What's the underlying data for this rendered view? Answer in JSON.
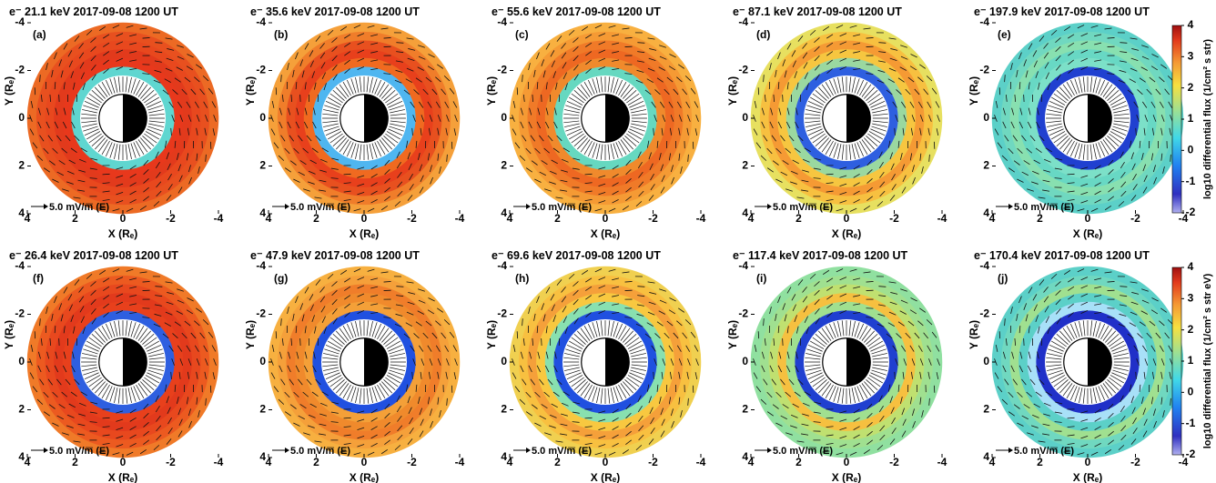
{
  "axes": {
    "xlim": [
      4,
      -4
    ],
    "ylim": [
      -4,
      4
    ],
    "xticks": [
      4,
      2,
      0,
      -2,
      -4
    ],
    "yticks": [
      -4,
      -2,
      0,
      2,
      4
    ],
    "x_label": "X (Rₑ)",
    "y_label": "Y (Rₑ)",
    "arrow_label": "5.0 mV/m (E)"
  },
  "panels": [
    {
      "title": "e⁻ 21.1 keV 2017-09-08 1200 UT",
      "label": "(a)",
      "rings": [
        "#5fd6d0",
        "#e8381c",
        "#e23a1c",
        "#e8481e",
        "#e8501f",
        "#ec6a24"
      ]
    },
    {
      "title": "e⁻ 35.6 keV 2017-09-08 1200 UT",
      "label": "(b)",
      "rings": [
        "#4fb6f0",
        "#f06a20",
        "#e8401c",
        "#e8501f",
        "#f07d2a",
        "#f5a03a"
      ]
    },
    {
      "title": "e⁻ 55.6 keV 2017-09-08 1200 UT",
      "label": "(c)",
      "rings": [
        "#66d8c0",
        "#f08a2c",
        "#ee6822",
        "#f07a28",
        "#f59a34",
        "#f8b040"
      ]
    },
    {
      "title": "e⁻ 87.1 keV 2017-09-08 1200 UT",
      "label": "(d)",
      "rings": [
        "#2e5fe0",
        "#9ad8a0",
        "#f6c640",
        "#f59a34",
        "#f7c040",
        "#e7e060"
      ]
    },
    {
      "title": "e⁻ 197.9 keV 2017-09-08 1200 UT",
      "label": "(e)",
      "rings": [
        "#2040d0",
        "#7ce0c8",
        "#68d8c4",
        "#88e0b0",
        "#70d8c0",
        "#5cd0c8"
      ]
    },
    {
      "title": "e⁻ 26.4 keV 2017-09-08 1200 UT",
      "label": "(f)",
      "rings": [
        "#2e5fe0",
        "#e8401c",
        "#e23a1c",
        "#e8481e",
        "#ec5a20",
        "#f07a28"
      ]
    },
    {
      "title": "e⁻ 47.9 keV 2017-09-08 1200 UT",
      "label": "(g)",
      "rings": [
        "#2050e0",
        "#f4a038",
        "#f08a2c",
        "#f07d2a",
        "#f5a03a",
        "#f7b040"
      ]
    },
    {
      "title": "e⁻ 69.6 keV 2017-09-08 1200 UT",
      "label": "(h)",
      "rings": [
        "#2050e0",
        "#88e0b0",
        "#f8c840",
        "#f5a03a",
        "#f8c040",
        "#f0d050"
      ]
    },
    {
      "title": "e⁻ 117.4 keV 2017-09-08 1200 UT",
      "label": "(i)",
      "rings": [
        "#2040d0",
        "#a0e090",
        "#f6c040",
        "#c0e070",
        "#a0e090",
        "#90e0a0"
      ]
    },
    {
      "title": "e⁻ 170.4 keV 2017-09-08 1200 UT",
      "label": "(j)",
      "rings": [
        "#2030c8",
        "#a8e0f8",
        "#5cd0c8",
        "#a0e090",
        "#70d8c0",
        "#5cd0c8"
      ]
    }
  ],
  "colorbars": [
    {
      "label": "log10 differential flux (1/cm² s str)",
      "ticks": [
        4,
        3,
        2,
        1,
        0,
        -1,
        -2
      ],
      "lim": [
        -2,
        4
      ]
    },
    {
      "label": "log10 differential flux (1/cm² s str eV)",
      "ticks": [
        4,
        3,
        2,
        1,
        0,
        -1,
        -2
      ],
      "lim": [
        -2,
        4
      ]
    }
  ]
}
